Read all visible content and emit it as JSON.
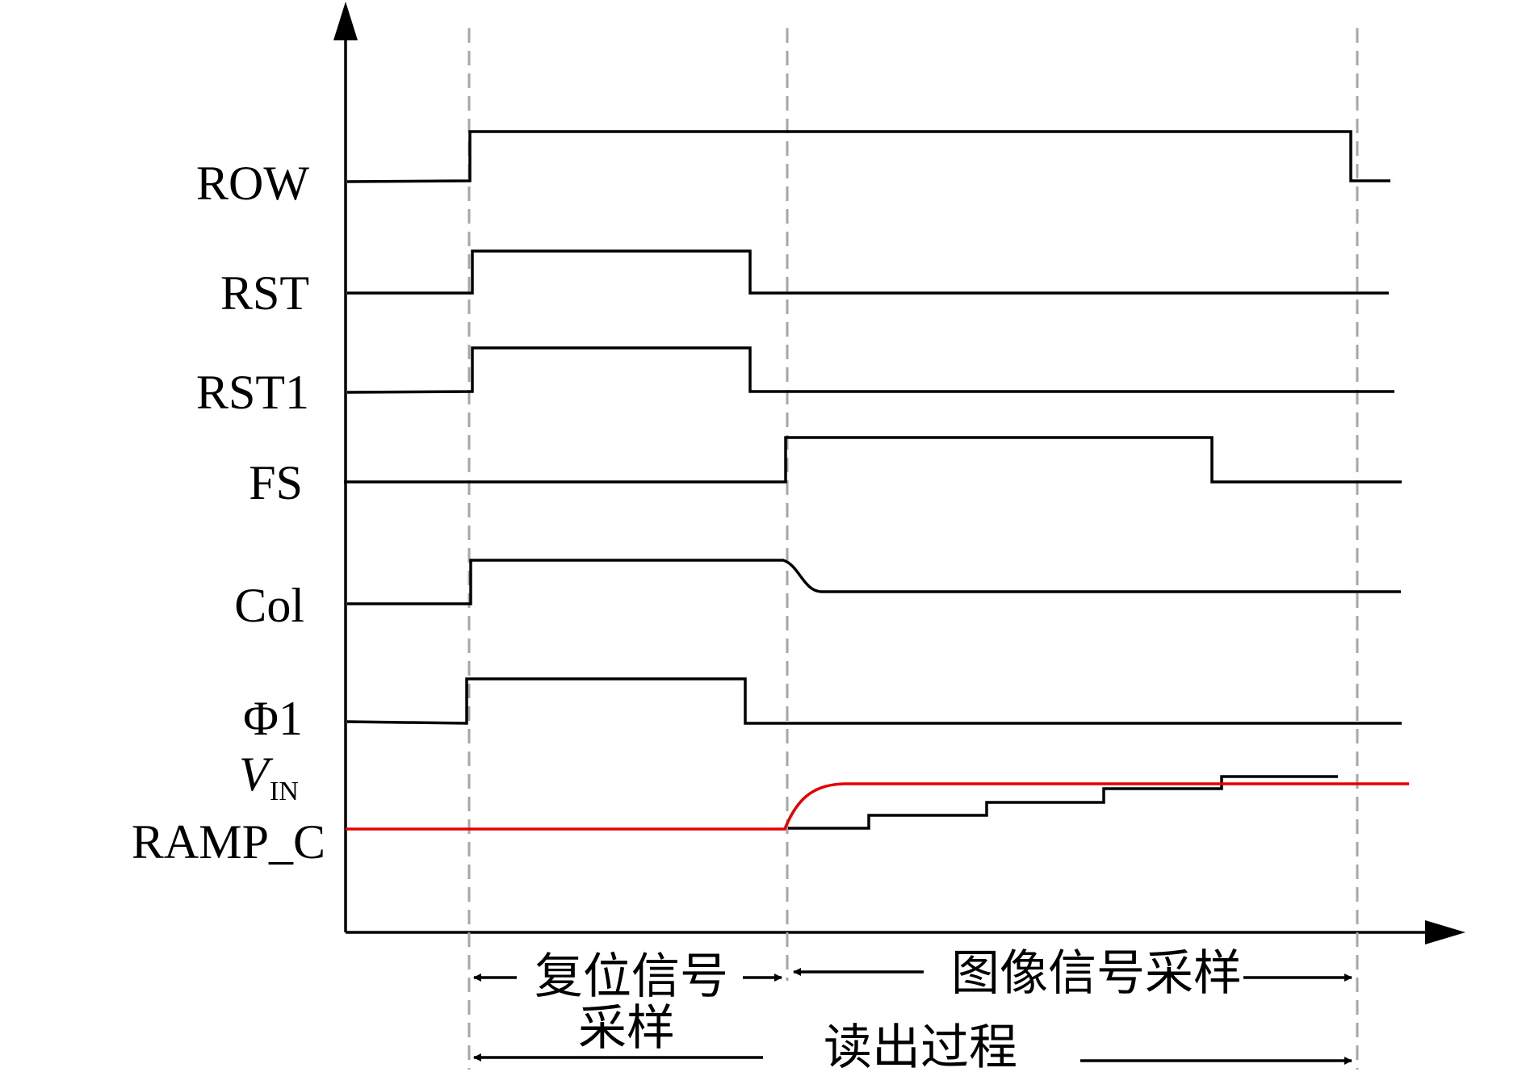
{
  "signals": {
    "row": "ROW",
    "rst": "RST",
    "rst1": "RST1",
    "fs": "FS",
    "col": "Col",
    "phi1": "Φ1",
    "vin_main": "V",
    "vin_sub": "IN",
    "ramp": "RAMP_C"
  },
  "phases": {
    "reset_line1": "复位信号",
    "reset_line2": "采样",
    "image": "图像信号采样",
    "readout": "读出过程"
  },
  "colors": {
    "waveform": "#000000",
    "vin_waveform": "#e60000",
    "dashed_marker": "#a6a6a6"
  }
}
